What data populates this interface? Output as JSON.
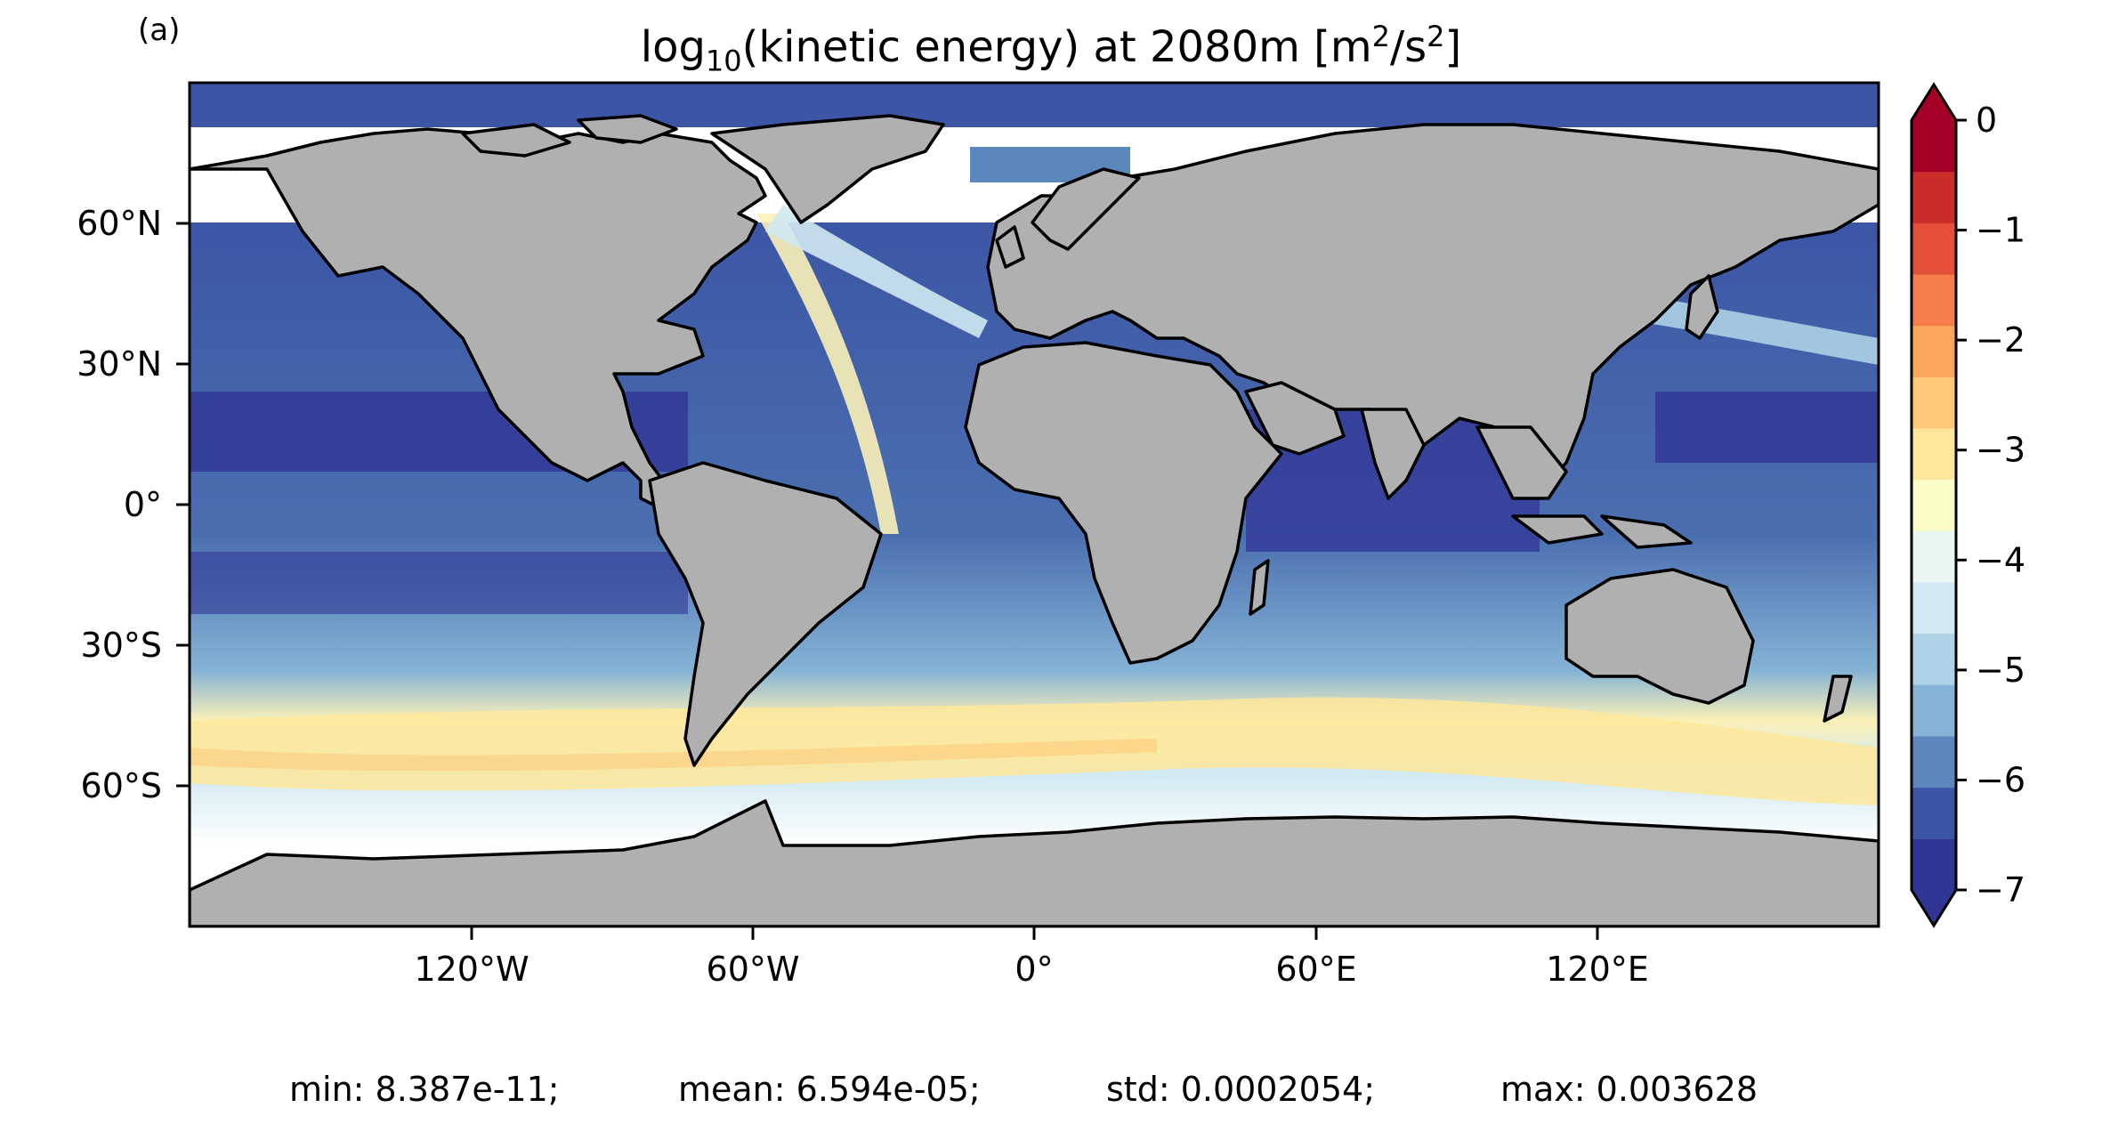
{
  "panel_label": "(a)",
  "title": {
    "pre": "log",
    "sub": "10",
    "mid": "(kinetic energy) at 2080m [m",
    "sup1": "2",
    "slash": "/s",
    "sup2": "2",
    "post": "]"
  },
  "map": {
    "longitude_ticks": [
      "120°W",
      "60°W",
      "0°",
      "60°E",
      "120°E"
    ],
    "latitude_ticks": [
      "60°N",
      "30°N",
      "0°",
      "30°S",
      "60°S"
    ],
    "land_color": "#b0b0b0",
    "no_data_color": "#ffffff"
  },
  "colorbar": {
    "tick_labels": [
      "0",
      "−1",
      "−2",
      "−3",
      "−4",
      "−5",
      "−6",
      "−7"
    ],
    "range": [
      -7,
      0
    ],
    "extend": "both",
    "colors": [
      "#313695",
      "#3c56a5",
      "#5b87bd",
      "#85b3d5",
      "#aed2e6",
      "#d0e9f2",
      "#eaf6f3",
      "#fbfdc7",
      "#fee79b",
      "#fdc979",
      "#fca65c",
      "#f47d4b",
      "#e4503a",
      "#c92d29",
      "#a50026"
    ]
  },
  "stats": {
    "min": "min: 8.387e-11;",
    "mean": "mean: 6.594e-05;",
    "std": "std: 0.0002054;",
    "max": "max: 0.003628"
  }
}
